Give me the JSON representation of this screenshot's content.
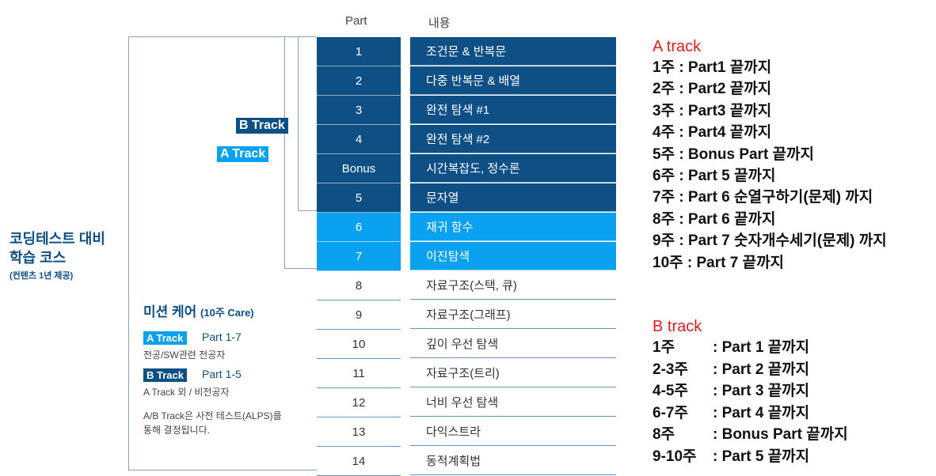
{
  "table": {
    "header_part": "Part",
    "header_content": "내용",
    "rows": [
      {
        "part": "1",
        "content": "조건문 & 반복문",
        "style": "dark"
      },
      {
        "part": "2",
        "content": "다중 반복문 & 배열",
        "style": "dark"
      },
      {
        "part": "3",
        "content": "완전 탐색 #1",
        "style": "dark"
      },
      {
        "part": "4",
        "content": "완전 탐색 #2",
        "style": "dark"
      },
      {
        "part": "Bonus",
        "content": "시간복잡도, 정수론",
        "style": "dark"
      },
      {
        "part": "5",
        "content": "문자열",
        "style": "dark"
      },
      {
        "part": "6",
        "content": "재귀 함수",
        "style": "light"
      },
      {
        "part": "7",
        "content": "이진탐색",
        "style": "light"
      },
      {
        "part": "8",
        "content": "자료구조(스택, 큐)",
        "style": "plain"
      },
      {
        "part": "9",
        "content": "자료구조(그래프)",
        "style": "plain"
      },
      {
        "part": "10",
        "content": "깊이 우선 탐색",
        "style": "plain"
      },
      {
        "part": "11",
        "content": "자료구조(트리)",
        "style": "plain"
      },
      {
        "part": "12",
        "content": "너비 우선 탐색",
        "style": "plain"
      },
      {
        "part": "13",
        "content": "다익스트라",
        "style": "plain"
      },
      {
        "part": "14",
        "content": "동적계획법",
        "style": "plain"
      }
    ]
  },
  "brackets": {
    "b_track_label": "B Track",
    "a_track_label": "A Track"
  },
  "course": {
    "title_line1": "코딩테스트 대비",
    "title_line2": "학습 코스",
    "subtitle": "(컨텐츠 1년 제공)"
  },
  "mission": {
    "title": "미션 케어",
    "title_suffix": "(10주 Care)",
    "a_label": "A Track",
    "a_range": "Part 1-7",
    "a_desc": "전공/SW관련 전공자",
    "b_label": "B Track",
    "b_range": "Part 1-5",
    "b_desc": "A Track 외 / 비전공자",
    "note_line1": "A/B Track은 사전 테스트(ALPS)를",
    "note_line2": "통해 결정됩니다."
  },
  "a_schedule": {
    "title": "A track",
    "items": [
      "1주 : Part1 끝까지",
      "2주 : Part2 끝까지",
      "3주 : Part3 끝까지",
      "4주 : Part4 끝까지",
      "5주 : Bonus Part 끝까지",
      "6주 : Part 5 끝까지",
      "7주 : Part 6 순열구하기(문제) 까지",
      "8주 : Part 6 끝까지",
      "9주 : Part 7 숫자개수세기(문제) 까지",
      "10주 : Part 7 끝까지"
    ]
  },
  "b_schedule": {
    "title": "B track",
    "items": [
      {
        "week": "1주",
        "text": ": Part 1 끝까지"
      },
      {
        "week": "2-3주",
        "text": ": Part 2 끝까지"
      },
      {
        "week": "4-5주",
        "text": ": Part 3 끝까지"
      },
      {
        "week": "6-7주",
        "text": ": Part 4 끝까지"
      },
      {
        "week": "8주",
        "text": ": Bonus Part 끝까지"
      },
      {
        "week": "9-10주",
        "text": ": Part 5 끝까지"
      }
    ]
  }
}
